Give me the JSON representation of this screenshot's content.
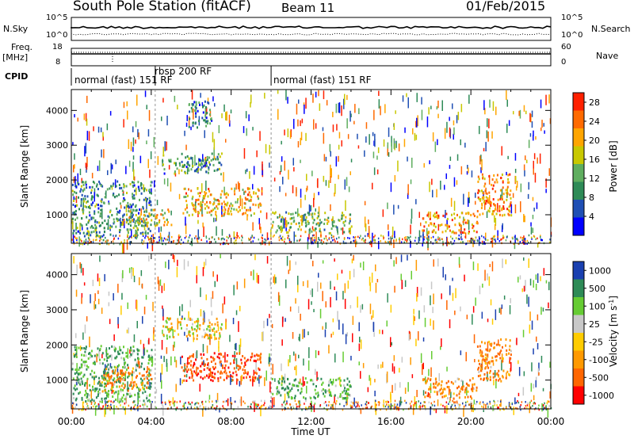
{
  "header": {
    "station": "South Pole Station (fitACF)",
    "beam": "Beam 11",
    "date": "01/Feb/2015"
  },
  "side_labels": {
    "nsky": "N.Sky",
    "nsearch": "N.Search",
    "freq": "Freq.",
    "freq_unit": "[MHz]",
    "nave": "Nave",
    "cpid": "CPID"
  },
  "small_axes": {
    "noise_left_ticks": [
      "10^5",
      "10^0"
    ],
    "noise_right_ticks": [
      "10^5",
      "10^0"
    ],
    "freq_left_ticks": [
      "18",
      "8"
    ],
    "nave_right_ticks": [
      "60",
      "0"
    ]
  },
  "cpid_labels": [
    {
      "text": "normal (fast) 151 RF",
      "start_hour": 0.0
    },
    {
      "text": "rbsp 200 RF",
      "start_hour": 4.2
    },
    {
      "text": "normal (fast) 151 RF",
      "start_hour": 10.0
    }
  ],
  "colors": {
    "power_scale": [
      "#0000ff",
      "#1f4fb4",
      "#2e8b57",
      "#5fae5f",
      "#c8c800",
      "#ffa500",
      "#ff6a00",
      "#ff2000"
    ],
    "velocity_scale": [
      "#1a40b0",
      "#2e8b57",
      "#66cc33",
      "#c8c8c8",
      "#ffcc00",
      "#ff9900",
      "#ff6600",
      "#ff0000"
    ]
  },
  "chart_data": [
    {
      "type": "heatmap",
      "title": "",
      "xlabel": "",
      "ylabel": "Slant Range [km]",
      "x_ticks": [
        "00:00",
        "04:00",
        "08:00",
        "12:00",
        "16:00",
        "20:00",
        "00:00"
      ],
      "xlim_hours": [
        0,
        24
      ],
      "ylim_km": [
        180,
        4600
      ],
      "y_ticks": [
        1000,
        2000,
        3000,
        4000
      ],
      "colorbar": {
        "label": "Power [dB]",
        "ticks": [
          4,
          8,
          12,
          16,
          20,
          24,
          28
        ],
        "range": [
          0,
          30
        ]
      },
      "features": [
        {
          "start_hour": 0.0,
          "end_hour": 4.0,
          "range_km": [
            400,
            2000
          ],
          "typical_db": 10
        },
        {
          "start_hour": 2.5,
          "end_hour": 5.0,
          "range_km": [
            700,
            1200
          ],
          "typical_db": 18
        },
        {
          "start_hour": 5.5,
          "end_hour": 9.5,
          "range_km": [
            1000,
            1800
          ],
          "typical_db": 20
        },
        {
          "start_hour": 4.5,
          "end_hour": 7.5,
          "range_km": [
            2200,
            2800
          ],
          "typical_db": 10
        },
        {
          "start_hour": 5.8,
          "end_hour": 7.0,
          "range_km": [
            3500,
            4300
          ],
          "typical_db": 8
        },
        {
          "start_hour": 10.0,
          "end_hour": 14.0,
          "range_km": [
            500,
            1100
          ],
          "typical_db": 14
        },
        {
          "start_hour": 17.5,
          "end_hour": 20.3,
          "range_km": [
            500,
            1100
          ],
          "typical_db": 22
        },
        {
          "start_hour": 20.3,
          "end_hour": 22.0,
          "range_km": [
            1000,
            2200
          ],
          "typical_db": 22
        }
      ]
    },
    {
      "type": "heatmap",
      "title": "",
      "xlabel": "Time UT",
      "ylabel": "Slant Range [km]",
      "x_ticks": [
        "00:00",
        "04:00",
        "08:00",
        "12:00",
        "16:00",
        "20:00",
        "00:00"
      ],
      "xlim_hours": [
        0,
        24
      ],
      "ylim_km": [
        180,
        4600
      ],
      "y_ticks": [
        1000,
        2000,
        3000,
        4000
      ],
      "colorbar": {
        "label": "Velocity [m s^-1]",
        "ticks": [
          "1000",
          "500",
          "100",
          "25",
          "-25",
          "-100",
          "-500",
          "-1000"
        ]
      },
      "features": [
        {
          "start_hour": 0.0,
          "end_hour": 4.0,
          "range_km": [
            400,
            2000
          ],
          "typical_velocity": 300
        },
        {
          "start_hour": 1.5,
          "end_hour": 4.0,
          "range_km": [
            700,
            1400
          ],
          "typical_velocity": -300
        },
        {
          "start_hour": 5.5,
          "end_hour": 9.5,
          "range_km": [
            1000,
            1800
          ],
          "typical_velocity": -600
        },
        {
          "start_hour": 4.5,
          "end_hour": 7.5,
          "range_km": [
            2200,
            2800
          ],
          "typical_velocity": 0
        },
        {
          "start_hour": 10.0,
          "end_hour": 14.0,
          "range_km": [
            500,
            1100
          ],
          "typical_velocity": 300
        },
        {
          "start_hour": 17.5,
          "end_hour": 20.3,
          "range_km": [
            500,
            1100
          ],
          "typical_velocity": -300
        },
        {
          "start_hour": 20.3,
          "end_hour": 22.0,
          "range_km": [
            1000,
            2200
          ],
          "typical_velocity": -300
        }
      ]
    }
  ]
}
